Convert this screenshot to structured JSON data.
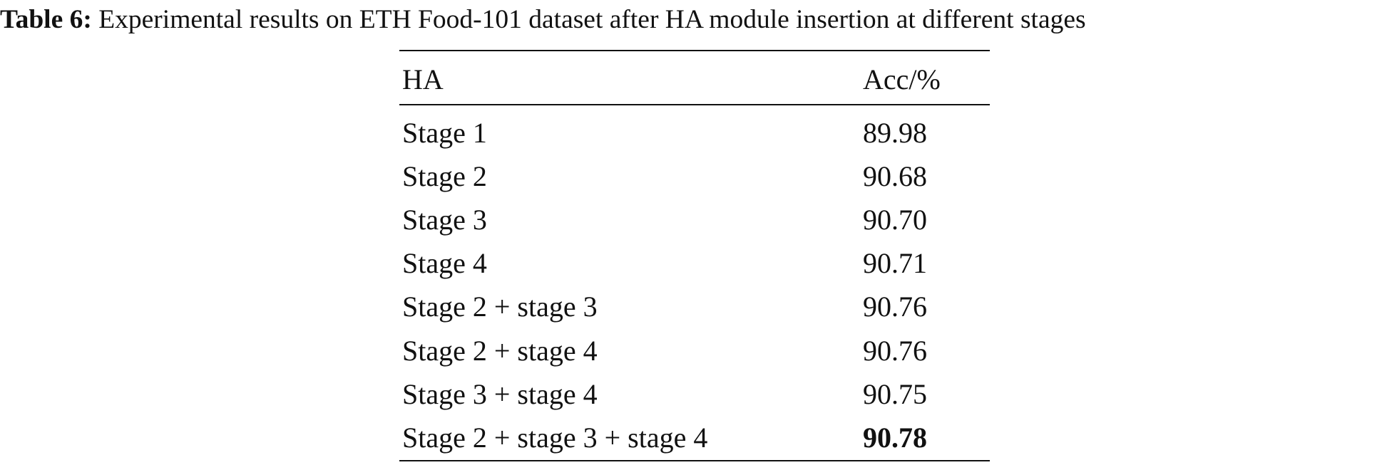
{
  "table": {
    "caption": {
      "label": "Table 6:",
      "text": "Experimental results on ETH Food-101 dataset after HA module insertion at different stages"
    },
    "header": [
      "HA",
      "Acc/%"
    ],
    "rows": [
      [
        "Stage 1",
        "89.98"
      ],
      [
        "Stage 2",
        "90.68"
      ],
      [
        "Stage 3",
        "90.70"
      ],
      [
        "Stage 4",
        "90.71"
      ],
      [
        "Stage 2 + stage 3",
        "90.76"
      ],
      [
        "Stage 2 + stage 4",
        "90.76"
      ],
      [
        "Stage 3 + stage 4",
        "90.75"
      ],
      [
        "Stage 2 + stage 3 + stage 4",
        "90.78"
      ]
    ]
  }
}
